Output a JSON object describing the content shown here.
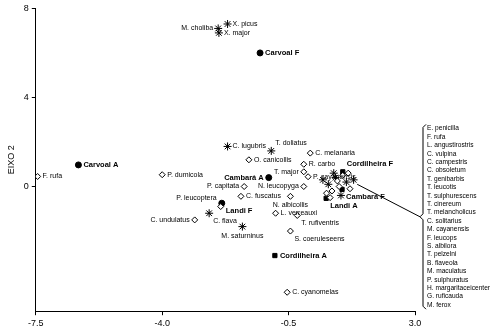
{
  "chart_data": {
    "type": "scatter",
    "y_label": "EIXO 2",
    "color": "#000000",
    "grid": false,
    "xlim": [
      -7.5,
      3.0
    ],
    "xticks": [
      -7.5,
      {
        "value": -4,
        "label": "-4.0"
      },
      -0.5,
      {
        "value": 3,
        "label": "3.0"
      }
    ],
    "ylim": [
      -5.6,
      8
    ],
    "yticks": [
      0,
      4,
      8
    ],
    "points": [
      {
        "label": "M. choliba",
        "x": -2.45,
        "y": 7.1,
        "marker": "star"
      },
      {
        "label": "X. picus",
        "x": -2.19,
        "y": 7.3,
        "marker": "star"
      },
      {
        "label": "X. major",
        "x": -2.43,
        "y": 6.9,
        "marker": "star"
      },
      {
        "label": "Carvoal F",
        "x": -1.29,
        "y": 6.0,
        "marker": "circle"
      },
      {
        "label": "F. rufa",
        "x": -7.45,
        "y": 0.45,
        "marker": "diamond"
      },
      {
        "label": "Carvoal A",
        "x": -6.32,
        "y": 0.97,
        "marker": "circle"
      },
      {
        "label": "P. dumicola",
        "x": -4.0,
        "y": 0.53,
        "marker": "diamond"
      },
      {
        "label": "C. undulatus",
        "x": -3.1,
        "y": -1.5,
        "marker": "diamond"
      },
      {
        "label": "C. lugubris",
        "x": -2.19,
        "y": 1.8,
        "marker": "star"
      },
      {
        "label": "O. canicollis",
        "x": -1.6,
        "y": 1.2,
        "marker": "diamond"
      },
      {
        "label": "T. doliatus",
        "x": -0.98,
        "y": 1.6,
        "marker": "star"
      },
      {
        "label": "C. melanaria",
        "x": 0.1,
        "y": 1.5,
        "marker": "diamond"
      },
      {
        "label": "R. carbo",
        "x": -0.08,
        "y": 1.0,
        "marker": "diamond"
      },
      {
        "label": "T. major",
        "x": -0.08,
        "y": 0.66,
        "marker": "diamond"
      },
      {
        "label": "P. cayanensis",
        "x": 0.04,
        "y": 0.44,
        "marker": "diamond"
      },
      {
        "label": "N. leucopyga",
        "x": -0.08,
        "y": 0.0,
        "marker": "diamond"
      },
      {
        "label": "P. capitata",
        "x": -1.73,
        "y": 0.0,
        "marker": "diamond"
      },
      {
        "label": "C. fuscatus",
        "x": -1.82,
        "y": -0.44,
        "marker": "diamond"
      },
      {
        "label": "Cambará A",
        "x": -1.05,
        "y": 0.4,
        "marker": "circle"
      },
      {
        "label": "Landi F",
        "x": -2.35,
        "y": -0.75,
        "marker": "circle"
      },
      {
        "label": "P. leucoptera",
        "x": -2.38,
        "y": -0.9,
        "marker": "diamond"
      },
      {
        "label": "C. flava",
        "x": -2.7,
        "y": -1.2,
        "marker": "star"
      },
      {
        "label": "N. albicollis",
        "x": -0.45,
        "y": -0.44,
        "marker": "diamond"
      },
      {
        "label": "M. saturninus",
        "x": -1.78,
        "y": -1.8,
        "marker": "star"
      },
      {
        "label": "L. verreauxi",
        "x": -0.86,
        "y": -1.2,
        "marker": "diamond"
      },
      {
        "label": "T. rufiventris",
        "x": -0.26,
        "y": -1.3,
        "marker": "diamond"
      },
      {
        "label": "S. coeruleseens",
        "x": -0.45,
        "y": -2.0,
        "marker": "diamond"
      },
      {
        "label": "Cordilheira A",
        "x": -0.88,
        "y": -3.1,
        "marker": "square"
      },
      {
        "label": "C. cyanomelas",
        "x": -0.54,
        "y": -4.75,
        "marker": "diamond"
      },
      {
        "label": "Landi A",
        "x": 0.54,
        "y": -0.53,
        "marker": "square"
      },
      {
        "label": "Cambará F",
        "x": 0.98,
        "y": -0.13,
        "marker": "square"
      },
      {
        "label": "Cordilheira F",
        "x": 1.0,
        "y": 0.66,
        "marker": "square"
      }
    ],
    "cluster_points": [
      {
        "x": 0.45,
        "y": 0.3,
        "marker": "star"
      },
      {
        "x": 0.6,
        "y": 0.1,
        "marker": "star"
      },
      {
        "x": 0.7,
        "y": -0.2,
        "marker": "diamond"
      },
      {
        "x": 0.8,
        "y": 0.4,
        "marker": "star"
      },
      {
        "x": 0.9,
        "y": 0.0,
        "marker": "diamond"
      },
      {
        "x": 1.1,
        "y": 0.2,
        "marker": "star"
      },
      {
        "x": 1.2,
        "y": -0.1,
        "marker": "diamond"
      },
      {
        "x": 0.55,
        "y": -0.3,
        "marker": "diamond"
      },
      {
        "x": 1.0,
        "y": 0.5,
        "marker": "diamond"
      },
      {
        "x": 0.75,
        "y": 0.6,
        "marker": "star"
      },
      {
        "x": 1.3,
        "y": 0.3,
        "marker": "star"
      },
      {
        "x": 0.65,
        "y": -0.5,
        "marker": "diamond"
      },
      {
        "x": 0.95,
        "y": -0.4,
        "marker": "star"
      },
      {
        "x": 1.15,
        "y": 0.6,
        "marker": "diamond"
      },
      {
        "x": 0.85,
        "y": 0.25,
        "marker": "diamond"
      }
    ],
    "cluster_list": [
      "E. penicilla",
      "F. rufa",
      "L. angustirostris",
      "C. vulpina",
      "C. campestris",
      "C. obsoletum",
      "T. genibarbis",
      "T. leucotis",
      "T. sulphurescens",
      "T. cinereum",
      "T. melancholicus",
      "C. solitarius",
      "M. cayanensis",
      "F. leucops",
      "S. albilora",
      "T. pelzelni",
      "B. flaveola",
      "M. maculatus",
      "P. sulphuratus",
      "H. margaritaceicenter",
      "G. ruficauda",
      "M. ferox"
    ]
  }
}
